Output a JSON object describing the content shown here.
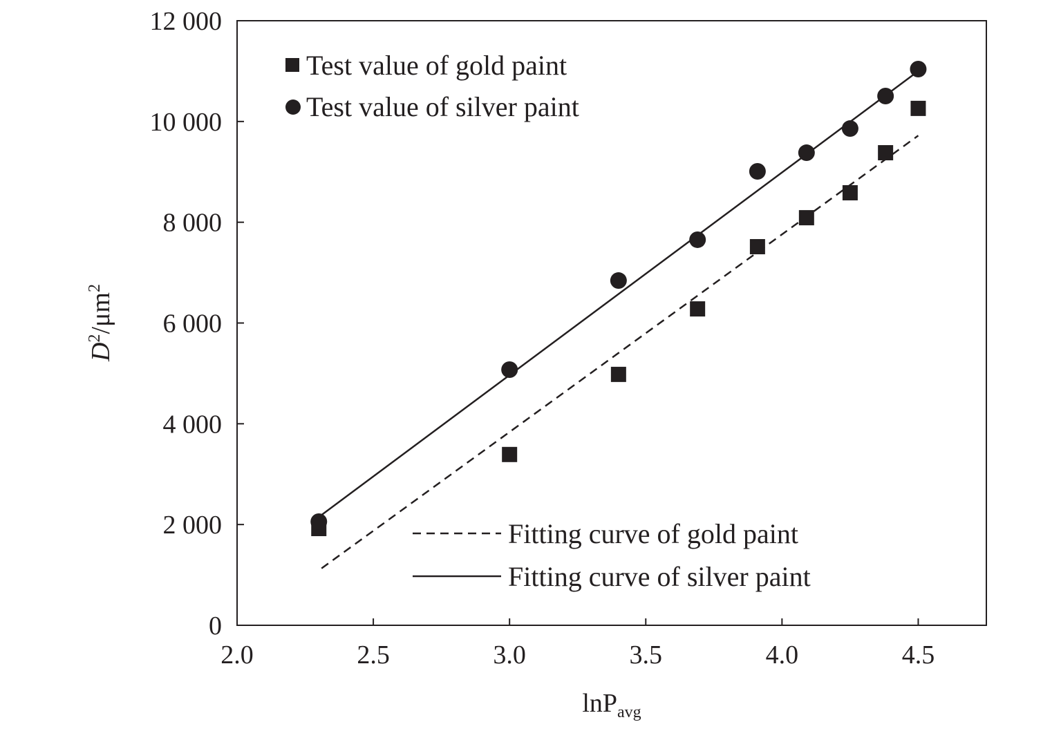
{
  "chart_data": {
    "type": "scatter",
    "title": "",
    "xlabel": "lnP",
    "xlabel_sub": "avg",
    "ylabel": "D",
    "ylabel_sup": "2",
    "ylabel_unit": "/μm",
    "ylabel_unit_sup": "2",
    "xlim": [
      2.0,
      4.75
    ],
    "ylim": [
      0,
      12000
    ],
    "xticks": [
      2.0,
      2.5,
      3.0,
      3.5,
      4.0,
      4.5
    ],
    "xtick_labels": [
      "2.0",
      "2.5",
      "3.0",
      "3.5",
      "4.0",
      "4.5"
    ],
    "yticks": [
      0,
      2000,
      4000,
      6000,
      8000,
      10000,
      12000
    ],
    "ytick_labels": [
      "0",
      "2 000",
      "4 000",
      "6 000",
      "8 000",
      "10 000",
      "12 000"
    ],
    "grid": false,
    "series": [
      {
        "name": "Test value of gold paint",
        "marker": "square",
        "x": [
          2.3,
          3.0,
          3.4,
          3.69,
          3.91,
          4.09,
          4.25,
          4.38,
          4.5
        ],
        "y": [
          1920,
          3390,
          4980,
          6280,
          7515,
          8090,
          8585,
          9380,
          10260
        ]
      },
      {
        "name": "Test value of silver paint",
        "marker": "circle",
        "x": [
          2.3,
          3.0,
          3.4,
          3.69,
          3.91,
          4.09,
          4.25,
          4.38,
          4.5
        ],
        "y": [
          2057,
          5074,
          6843,
          7653,
          9010,
          9380,
          9860,
          10505,
          11040
        ]
      },
      {
        "name": "Fitting curve of gold paint",
        "line": "dashed",
        "x": [
          2.31,
          4.5
        ],
        "y": [
          1130,
          9720
        ]
      },
      {
        "name": "Fitting curve of silver paint",
        "line": "solid",
        "x": [
          2.3,
          4.5
        ],
        "y": [
          2150,
          11000
        ]
      }
    ],
    "legend_placement": [
      "top-left",
      "bottom-right"
    ]
  },
  "colors": {
    "ink": "#231f20"
  }
}
